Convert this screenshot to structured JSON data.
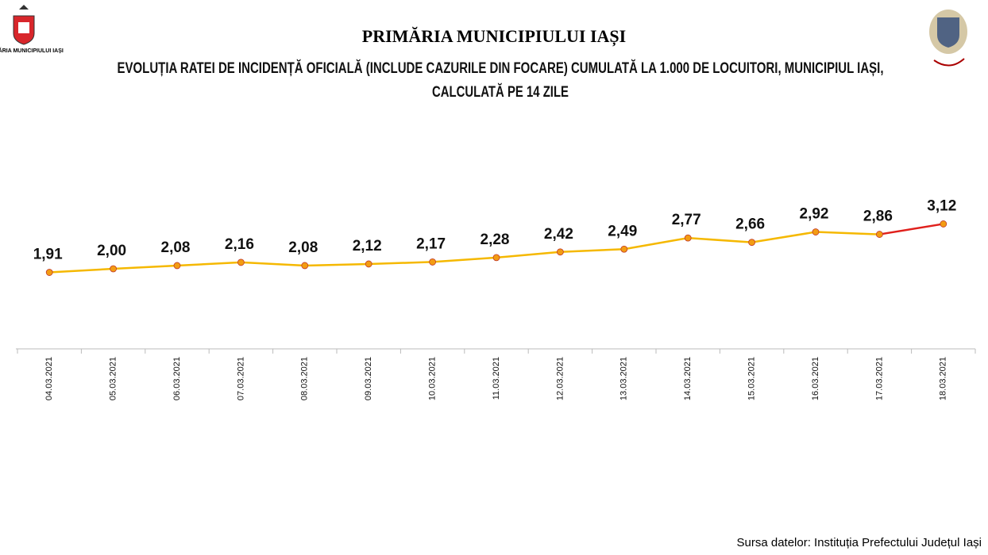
{
  "header": {
    "left_logo_text": "PRIMĂRIA MUNICIPIULUI IAȘI",
    "institution": "PRIMĂRIA MUNICIPIULUI IAȘI"
  },
  "chart_data": {
    "type": "line",
    "title": "EVOLUȚIA RATEI DE INCIDENȚĂ OFICIALĂ (INCLUDE CAZURILE DIN FOCARE) CUMULATĂ LA 1.000 DE LOCUITORI, MUNICIPIUL IAȘI,",
    "subtitle": "CALCULATĂ PE 14 ZILE",
    "categories": [
      "04.03.2021",
      "05.03.2021",
      "06.03.2021",
      "07.03.2021",
      "08.03.2021",
      "09.03.2021",
      "10.03.2021",
      "11.03.2021",
      "12.03.2021",
      "13.03.2021",
      "14.03.2021",
      "15.03.2021",
      "16.03.2021",
      "17.03.2021",
      "18.03.2021"
    ],
    "values": [
      1.91,
      2.0,
      2.08,
      2.16,
      2.08,
      2.12,
      2.17,
      2.28,
      2.42,
      2.49,
      2.77,
      2.66,
      2.92,
      2.86,
      3.12
    ],
    "value_labels": [
      "1,91",
      "2,00",
      "2,08",
      "2,16",
      "2,08",
      "2,12",
      "2,17",
      "2,28",
      "2,42",
      "2,49",
      "2,77",
      "2,66",
      "2,92",
      "2,86",
      "3,12"
    ],
    "color": "#f5b800",
    "highlight_color": "#e0201c",
    "marker_color": "#f39c12",
    "ylim": [
      0,
      6
    ]
  },
  "footer": {
    "source": "Sursa datelor: Instituția Prefectului Județul Iași"
  }
}
